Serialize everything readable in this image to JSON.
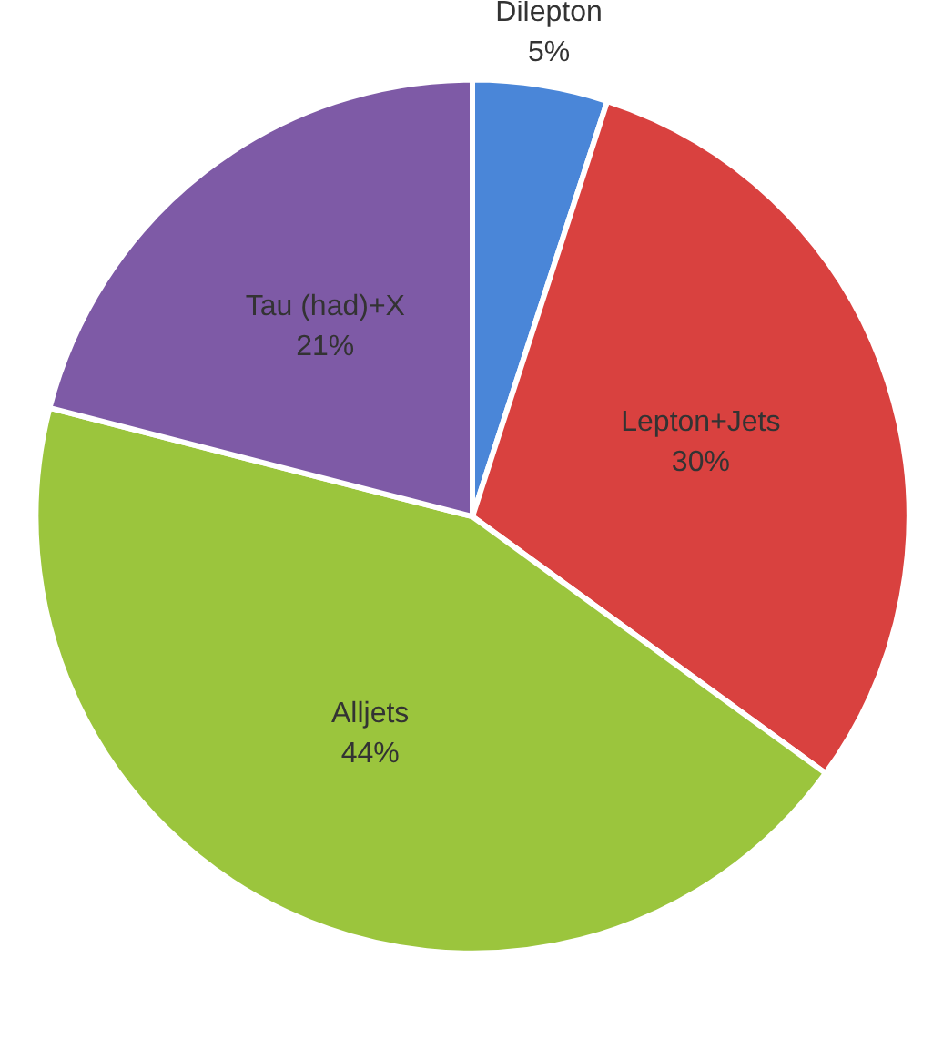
{
  "chart_data": {
    "type": "pie",
    "categories": [
      "Dilepton",
      "Lepton+Jets",
      "Alljets",
      "Tau (had)+X"
    ],
    "values": [
      5,
      30,
      44,
      21
    ],
    "colors": [
      "#4a86d8",
      "#d9413f",
      "#9bc53d",
      "#7e5aa6"
    ],
    "value_labels": [
      "5%",
      "30%",
      "44%",
      "21%"
    ]
  }
}
